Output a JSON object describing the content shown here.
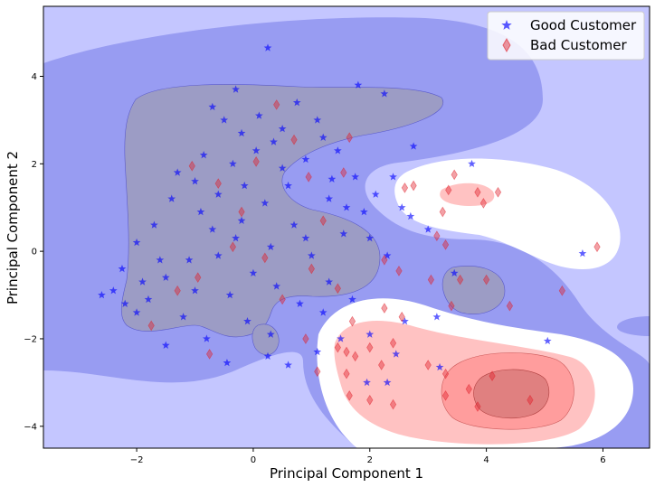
{
  "chart_data": {
    "type": "scatter",
    "title": "",
    "xlabel": "Principal Component 1",
    "ylabel": "Principal Component 2",
    "xlim": [
      -3.6,
      6.8
    ],
    "ylim": [
      -4.5,
      5.6
    ],
    "xticks": [
      -2,
      0,
      2,
      4,
      6
    ],
    "yticks": [
      -4,
      -2,
      0,
      2,
      4
    ],
    "grid": false,
    "legend_position": "top-right",
    "background": "decision-function contour (blue = good region, red = bad region)",
    "series": [
      {
        "name": "Good Customer",
        "marker": "star",
        "color": "#0000ff",
        "points": [
          [
            0.25,
            4.65
          ],
          [
            -0.3,
            3.7
          ],
          [
            1.8,
            3.8
          ],
          [
            2.25,
            3.6
          ],
          [
            0.75,
            3.4
          ],
          [
            -0.7,
            3.3
          ],
          [
            0.1,
            3.1
          ],
          [
            1.1,
            3.0
          ],
          [
            -0.5,
            3.0
          ],
          [
            0.5,
            2.8
          ],
          [
            1.2,
            2.6
          ],
          [
            -0.2,
            2.7
          ],
          [
            0.35,
            2.5
          ],
          [
            2.75,
            2.4
          ],
          [
            -0.85,
            2.2
          ],
          [
            1.45,
            2.3
          ],
          [
            0.9,
            2.1
          ],
          [
            -0.35,
            2.0
          ],
          [
            3.75,
            2.0
          ],
          [
            1.75,
            1.7
          ],
          [
            -1.0,
            1.6
          ],
          [
            0.6,
            1.5
          ],
          [
            2.4,
            1.7
          ],
          [
            -0.6,
            1.3
          ],
          [
            1.3,
            1.2
          ],
          [
            2.1,
            1.3
          ],
          [
            0.2,
            1.1
          ],
          [
            -1.4,
            1.2
          ],
          [
            1.9,
            0.9
          ],
          [
            -0.2,
            0.7
          ],
          [
            0.7,
            0.6
          ],
          [
            2.7,
            0.8
          ],
          [
            -1.7,
            0.6
          ],
          [
            1.55,
            0.4
          ],
          [
            3.0,
            0.5
          ],
          [
            -2.0,
            0.2
          ],
          [
            0.3,
            0.1
          ],
          [
            1.0,
            -0.1
          ],
          [
            -1.1,
            -0.2
          ],
          [
            2.3,
            -0.1
          ],
          [
            -2.25,
            -0.4
          ],
          [
            -1.5,
            -0.6
          ],
          [
            0.0,
            -0.5
          ],
          [
            1.3,
            -0.7
          ],
          [
            -2.4,
            -0.9
          ],
          [
            -2.6,
            -1.0
          ],
          [
            -1.8,
            -1.1
          ],
          [
            -0.4,
            -1.0
          ],
          [
            0.8,
            -1.2
          ],
          [
            1.7,
            -1.1
          ],
          [
            -2.0,
            -1.4
          ],
          [
            -1.2,
            -1.5
          ],
          [
            -0.1,
            -1.6
          ],
          [
            2.6,
            -1.6
          ],
          [
            3.15,
            -1.5
          ],
          [
            -0.8,
            -2.0
          ],
          [
            0.3,
            -1.9
          ],
          [
            1.5,
            -2.0
          ],
          [
            -1.5,
            -2.15
          ],
          [
            2.45,
            -2.35
          ],
          [
            0.25,
            -2.4
          ],
          [
            -0.45,
            -2.55
          ],
          [
            0.6,
            -2.6
          ],
          [
            1.1,
            -2.3
          ],
          [
            3.2,
            -2.65
          ],
          [
            5.05,
            -2.05
          ],
          [
            5.65,
            -0.05
          ],
          [
            2.0,
            -1.9
          ],
          [
            2.3,
            -3.0
          ],
          [
            1.95,
            -3.0
          ],
          [
            -1.3,
            1.8
          ],
          [
            -0.9,
            0.9
          ],
          [
            -0.6,
            -0.1
          ],
          [
            0.4,
            -0.8
          ],
          [
            -1.6,
            -0.2
          ],
          [
            -0.3,
            0.3
          ],
          [
            0.5,
            1.9
          ],
          [
            1.6,
            1.0
          ],
          [
            2.0,
            0.3
          ],
          [
            -1.9,
            -0.7
          ],
          [
            -2.2,
            -1.2
          ],
          [
            -0.7,
            0.5
          ],
          [
            0.05,
            2.3
          ],
          [
            -0.15,
            1.5
          ],
          [
            1.2,
            -1.4
          ],
          [
            -1.0,
            -0.9
          ],
          [
            0.9,
            0.3
          ],
          [
            3.45,
            -0.5
          ],
          [
            2.55,
            1.0
          ],
          [
            1.35,
            1.65
          ]
        ]
      },
      {
        "name": "Bad Customer",
        "marker": "thin_diamond",
        "color": "#e0202a",
        "points": [
          [
            0.4,
            3.35
          ],
          [
            0.7,
            2.55
          ],
          [
            0.05,
            2.05
          ],
          [
            1.65,
            2.6
          ],
          [
            1.55,
            1.8
          ],
          [
            -1.05,
            1.95
          ],
          [
            2.75,
            1.5
          ],
          [
            3.45,
            1.75
          ],
          [
            2.6,
            1.45
          ],
          [
            3.35,
            1.4
          ],
          [
            3.85,
            1.35
          ],
          [
            3.95,
            1.1
          ],
          [
            4.2,
            1.35
          ],
          [
            3.25,
            0.9
          ],
          [
            3.15,
            0.35
          ],
          [
            3.3,
            0.15
          ],
          [
            5.9,
            0.1
          ],
          [
            3.05,
            -0.65
          ],
          [
            3.55,
            -0.65
          ],
          [
            3.4,
            -1.25
          ],
          [
            4.0,
            -0.65
          ],
          [
            4.4,
            -1.25
          ],
          [
            5.3,
            -0.9
          ],
          [
            2.25,
            -0.2
          ],
          [
            2.5,
            -0.45
          ],
          [
            1.2,
            0.7
          ],
          [
            -0.35,
            0.1
          ],
          [
            -0.95,
            -0.6
          ],
          [
            0.5,
            -1.1
          ],
          [
            1.45,
            -0.85
          ],
          [
            -1.75,
            -1.7
          ],
          [
            -0.75,
            -2.35
          ],
          [
            1.7,
            -1.6
          ],
          [
            2.25,
            -1.3
          ],
          [
            2.0,
            -2.2
          ],
          [
            1.6,
            -2.3
          ],
          [
            1.75,
            -2.4
          ],
          [
            1.45,
            -2.2
          ],
          [
            2.4,
            -2.1
          ],
          [
            1.6,
            -2.8
          ],
          [
            3.0,
            -2.6
          ],
          [
            3.3,
            -2.8
          ],
          [
            3.3,
            -3.3
          ],
          [
            2.4,
            -3.5
          ],
          [
            1.1,
            -2.75
          ],
          [
            1.65,
            -3.3
          ],
          [
            2.0,
            -3.4
          ],
          [
            2.2,
            -2.6
          ],
          [
            3.7,
            -3.15
          ],
          [
            3.85,
            -3.55
          ],
          [
            4.1,
            -2.85
          ],
          [
            4.75,
            -3.4
          ],
          [
            2.55,
            -1.5
          ],
          [
            0.9,
            -2.0
          ],
          [
            -1.3,
            -0.9
          ],
          [
            -0.2,
            0.9
          ],
          [
            0.95,
            1.7
          ],
          [
            1.0,
            -0.4
          ],
          [
            -0.6,
            1.55
          ],
          [
            0.2,
            -0.15
          ]
        ]
      }
    ]
  }
}
